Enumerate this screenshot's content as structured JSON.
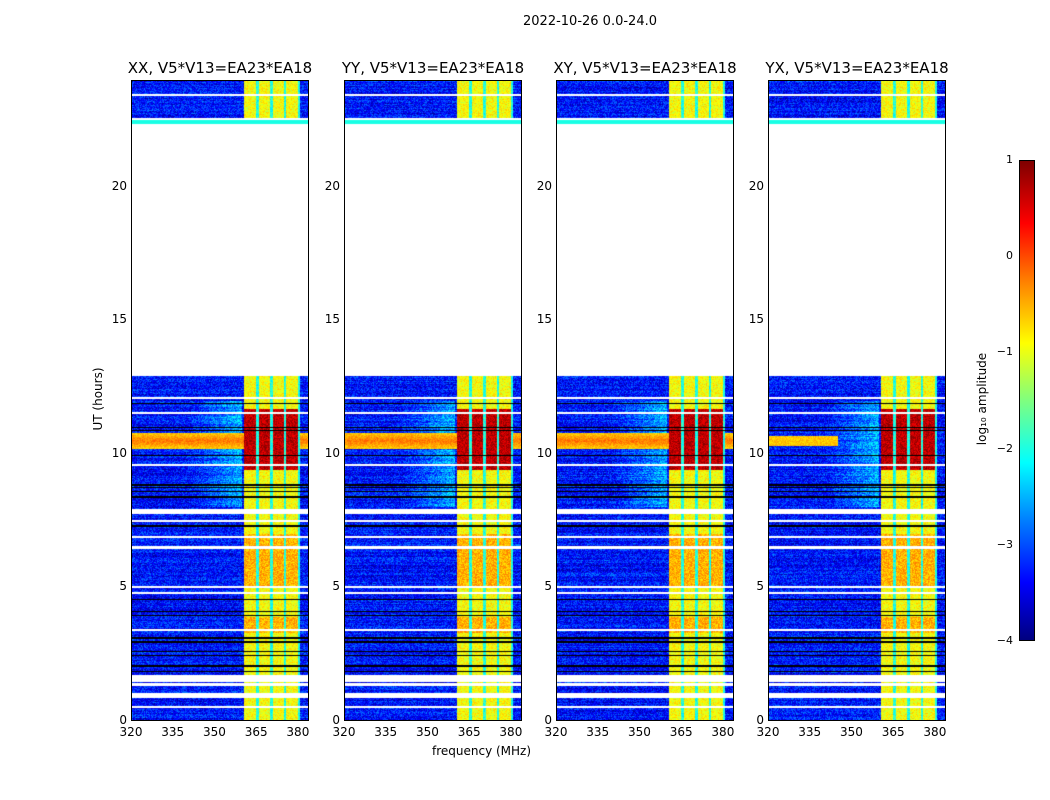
{
  "figure": {
    "suptitle": "2022-10-26 0.0-24.0",
    "xlabel": "frequency (MHz)",
    "ylabel": "UT (hours)",
    "colorbar_label": "log₁₀ amplitude"
  },
  "chart_data": {
    "type": "heatmap",
    "colormap": "jet",
    "panels": [
      {
        "title": "XX, V5*V13=EA23*EA18",
        "strong_band": true
      },
      {
        "title": "YY, V5*V13=EA23*EA18",
        "strong_band": true
      },
      {
        "title": "XY, V5*V13=EA23*EA18",
        "strong_band": true
      },
      {
        "title": "YX, V5*V13=EA23*EA18",
        "strong_band": false
      }
    ],
    "xlim": [
      320,
      384
    ],
    "ylim": [
      0,
      24
    ],
    "xticks": [
      "320",
      "335",
      "350",
      "365",
      "380"
    ],
    "xtick_values": [
      320,
      335,
      350,
      365,
      380
    ],
    "yticks": [
      "0",
      "5",
      "10",
      "15",
      "20"
    ],
    "ytick_values": [
      0,
      5,
      10,
      15,
      20
    ],
    "color_range": [
      -4,
      1
    ],
    "colorbar_ticks": [
      "1",
      "0",
      "−1",
      "−2",
      "−3",
      "−4"
    ],
    "colorbar_tick_values": [
      1,
      0,
      -1,
      -2,
      -3,
      -4
    ],
    "no_data_time_ranges_hours": [
      [
        12.95,
        22.4
      ],
      [
        7.75,
        7.95
      ],
      [
        1.45,
        1.7
      ],
      [
        0.85,
        1.05
      ]
    ],
    "rfi_band_mhz": [
      360.5,
      381
    ],
    "rfi_subband_gaps_mhz": [
      365.5,
      370.5,
      375.5
    ],
    "strong_time_band_hours": [
      10.2,
      10.8
    ],
    "background_log_amplitude": -3.3,
    "rfi_log_amplitude": -0.9,
    "rfi_peak_log_amplitude": 0.9
  }
}
